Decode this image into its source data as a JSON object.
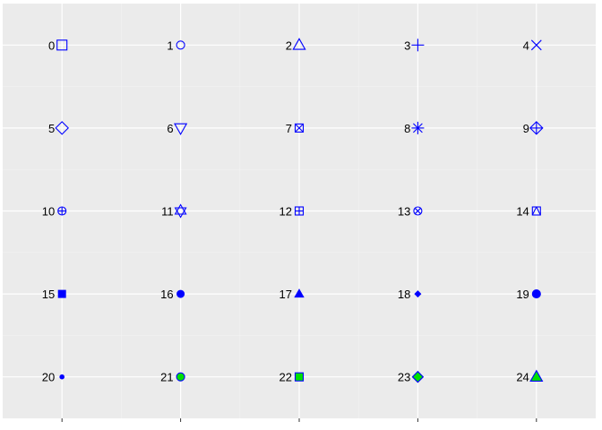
{
  "colors": {
    "panel_background": "#ebebeb",
    "grid_major": "#ffffff",
    "grid_minor": "#f2f2f2",
    "shape_stroke": "#0000ff",
    "shape_fill_solid": "#0000ff",
    "shape_fill_alt": "#00e000",
    "tick": "#333333"
  },
  "chart_data": {
    "type": "scatter",
    "title": "",
    "xlabel": "",
    "ylabel": "",
    "grid": true,
    "legend": "none",
    "xlim": [
      0.5,
      5.5
    ],
    "ylim": [
      0.5,
      5.5
    ],
    "x_ticks": [
      1,
      2,
      3,
      4,
      5
    ],
    "y_ticks": [
      1,
      2,
      3,
      4,
      5
    ],
    "x_minor": [
      1.5,
      2.5,
      3.5,
      4.5
    ],
    "y_minor": [
      1.5,
      2.5,
      3.5,
      4.5
    ],
    "points": [
      {
        "shape": 0,
        "x": 1,
        "y": 5,
        "label": "0"
      },
      {
        "shape": 1,
        "x": 2,
        "y": 5,
        "label": "1"
      },
      {
        "shape": 2,
        "x": 3,
        "y": 5,
        "label": "2"
      },
      {
        "shape": 3,
        "x": 4,
        "y": 5,
        "label": "3"
      },
      {
        "shape": 4,
        "x": 5,
        "y": 5,
        "label": "4"
      },
      {
        "shape": 5,
        "x": 1,
        "y": 4,
        "label": "5"
      },
      {
        "shape": 6,
        "x": 2,
        "y": 4,
        "label": "6"
      },
      {
        "shape": 7,
        "x": 3,
        "y": 4,
        "label": "7"
      },
      {
        "shape": 8,
        "x": 4,
        "y": 4,
        "label": "8"
      },
      {
        "shape": 9,
        "x": 5,
        "y": 4,
        "label": "9"
      },
      {
        "shape": 10,
        "x": 1,
        "y": 3,
        "label": "10"
      },
      {
        "shape": 11,
        "x": 2,
        "y": 3,
        "label": "11"
      },
      {
        "shape": 12,
        "x": 3,
        "y": 3,
        "label": "12"
      },
      {
        "shape": 13,
        "x": 4,
        "y": 3,
        "label": "13"
      },
      {
        "shape": 14,
        "x": 5,
        "y": 3,
        "label": "14"
      },
      {
        "shape": 15,
        "x": 1,
        "y": 2,
        "label": "15"
      },
      {
        "shape": 16,
        "x": 2,
        "y": 2,
        "label": "16"
      },
      {
        "shape": 17,
        "x": 3,
        "y": 2,
        "label": "17"
      },
      {
        "shape": 18,
        "x": 4,
        "y": 2,
        "label": "18"
      },
      {
        "shape": 19,
        "x": 5,
        "y": 2,
        "label": "19"
      },
      {
        "shape": 20,
        "x": 1,
        "y": 1,
        "label": "20"
      },
      {
        "shape": 21,
        "x": 2,
        "y": 1,
        "label": "21"
      },
      {
        "shape": 22,
        "x": 3,
        "y": 1,
        "label": "22"
      },
      {
        "shape": 23,
        "x": 4,
        "y": 1,
        "label": "23"
      },
      {
        "shape": 24,
        "x": 5,
        "y": 1,
        "label": "24"
      }
    ]
  }
}
